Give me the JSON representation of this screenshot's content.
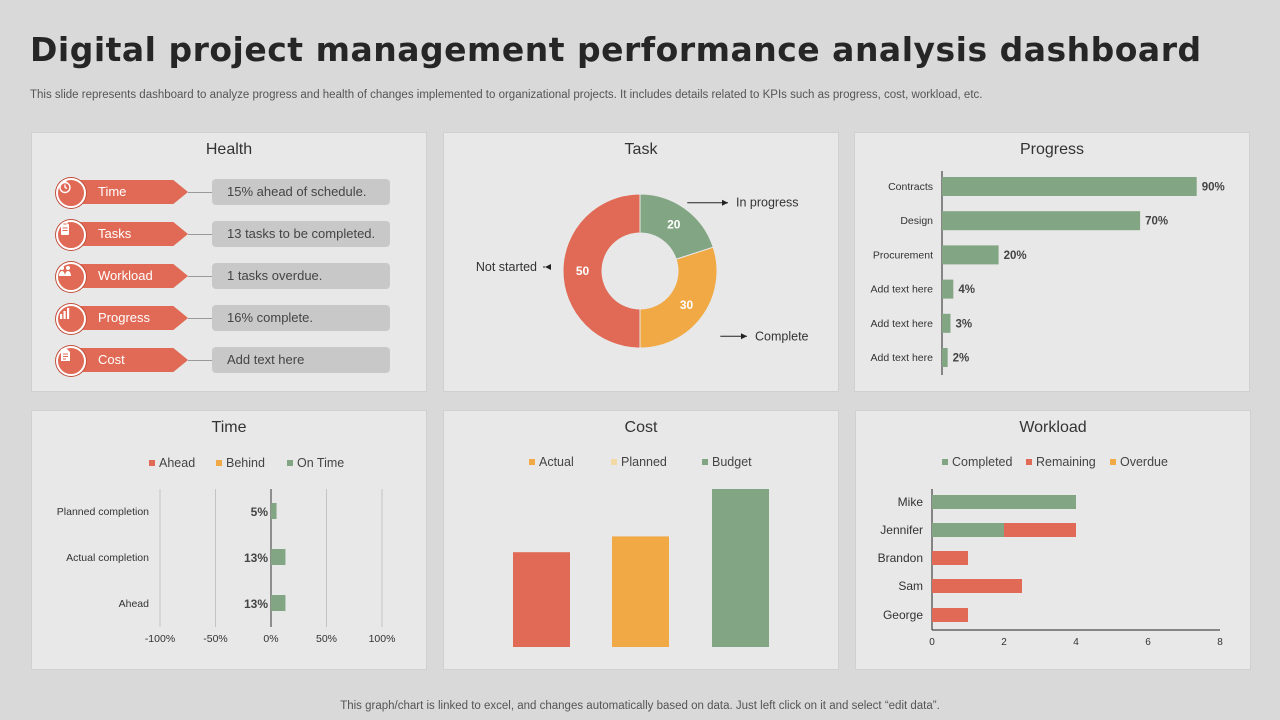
{
  "title": "Digital project management performance analysis dashboard",
  "subtitle": "This slide represents dashboard to analyze progress and health of changes implemented to organizational projects. It includes details related to KPIs such as progress, cost, workload, etc.",
  "footer": "This graph/chart is linked to excel,  and changes automatically based on data. Just left click on it and select “edit data”.",
  "colors": {
    "red": "#e06a55",
    "orange": "#f0a945",
    "green": "#82a683",
    "cream": "#f3d9a4"
  },
  "health": {
    "title": "Health",
    "rows": [
      {
        "label": "Time",
        "text": "15% ahead of schedule.",
        "icon": "clock-icon"
      },
      {
        "label": "Tasks",
        "text": "13 tasks to be completed.",
        "icon": "clipboard-icon"
      },
      {
        "label": "Workload",
        "text": "1 tasks overdue.",
        "icon": "people-icon"
      },
      {
        "label": "Progress",
        "text": "16% complete.",
        "icon": "bar-chart-icon"
      },
      {
        "label": "Cost",
        "text": "Add text here",
        "icon": "document-icon"
      }
    ]
  },
  "chart_data": [
    {
      "type": "pie",
      "title": "Task",
      "slices": [
        {
          "label": "In progress",
          "value": 20,
          "color": "#82a683"
        },
        {
          "label": "Complete",
          "value": 30,
          "color": "#f0a945"
        },
        {
          "label": "Not started",
          "value": 50,
          "color": "#e06a55"
        }
      ]
    },
    {
      "type": "bar",
      "title": "Progress",
      "categories": [
        "Contracts",
        "Design",
        "Procurement",
        "Add text here",
        "Add text here",
        "Add text here"
      ],
      "values": [
        90,
        70,
        20,
        4,
        3,
        2
      ],
      "value_labels": [
        "90%",
        "70%",
        "20%",
        "4%",
        "3%",
        "2%"
      ],
      "xlim": [
        0,
        100
      ]
    },
    {
      "type": "bar",
      "title": "Time",
      "categories": [
        "Planned completion",
        "Actual completion",
        "Ahead"
      ],
      "series": [
        {
          "name": "Ahead"
        },
        {
          "name": "Behind"
        },
        {
          "name": "On Time"
        }
      ],
      "values": [
        5,
        13,
        13
      ],
      "value_labels": [
        "5%",
        "13%",
        "13%"
      ],
      "xlim": [
        -100,
        100
      ],
      "ticks": [
        "-100%",
        "-50%",
        "0%",
        "50%",
        "100%"
      ]
    },
    {
      "type": "bar",
      "title": "Cost",
      "series": [
        {
          "name": "Actual",
          "value": 60
        },
        {
          "name": "Planned",
          "value": 70
        },
        {
          "name": "Budget",
          "value": 100
        }
      ]
    },
    {
      "type": "bar",
      "title": "Workload",
      "categories": [
        "Mike",
        "Jennifer",
        "Brandon",
        "Sam",
        "George"
      ],
      "series": [
        {
          "name": "Completed",
          "values": [
            4,
            2,
            0,
            0,
            0
          ]
        },
        {
          "name": "Remaining",
          "values": [
            0,
            2,
            1,
            2.5,
            1
          ]
        },
        {
          "name": "Overdue",
          "values": [
            0,
            0,
            0,
            0,
            0
          ]
        }
      ],
      "xlim": [
        0,
        8
      ],
      "ticks": [
        "0",
        "2",
        "4",
        "6",
        "8"
      ]
    }
  ]
}
